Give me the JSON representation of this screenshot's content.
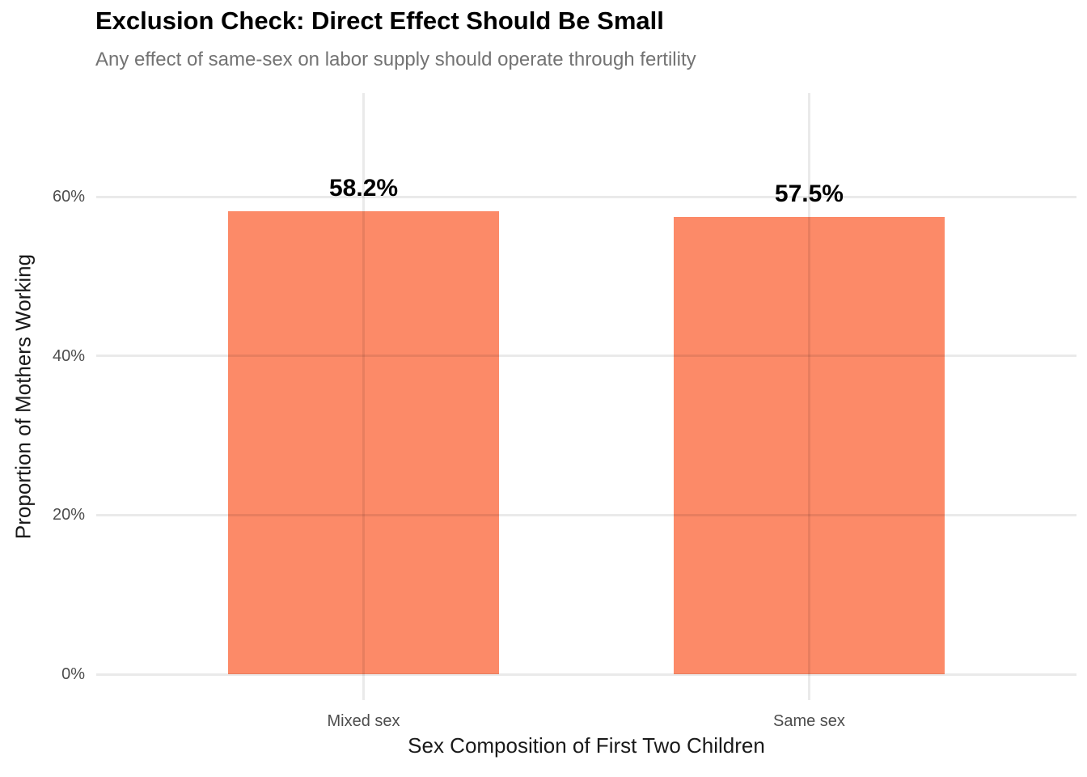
{
  "chart_data": {
    "type": "bar",
    "title": "Exclusion Check: Direct Effect Should Be Small",
    "subtitle": "Any effect of same-sex on labor supply should operate through fertility",
    "xlabel": "Sex Composition of First Two Children",
    "ylabel": "Proportion of Mothers Working",
    "categories": [
      "Mixed sex",
      "Same sex"
    ],
    "values": [
      58.2,
      57.5
    ],
    "bar_labels": [
      "58.2%",
      "57.5%"
    ],
    "y_ticks": [
      "0%",
      "20%",
      "40%",
      "60%"
    ],
    "y_tick_values": [
      0,
      20,
      40,
      60
    ],
    "ylim": [
      0,
      73
    ],
    "grid": "major-only",
    "legend": "none",
    "bar_color": "#FC8A68",
    "colors": {
      "title": "#000000",
      "subtitle": "#737373",
      "axis_title": "#1A1A1A",
      "tick_label": "#4D4D4D",
      "gridline": "#E9E9E9",
      "background": "#FFFFFF"
    }
  }
}
